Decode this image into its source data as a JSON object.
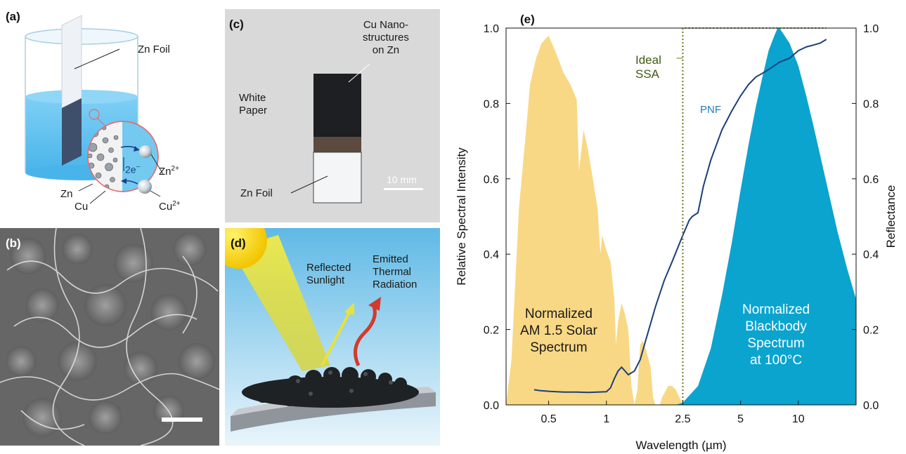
{
  "panel_a": {
    "label": "(a)",
    "zn_foil": "Zn Foil",
    "zn_ion": "Zn",
    "zn_ion_charge": "2+",
    "electrons": "2e",
    "electrons_sup": "−",
    "cu_ion": "Cu",
    "cu_ion_charge": "2+",
    "zn": "Zn",
    "cu": "Cu"
  },
  "panel_b": {
    "label": "(b)"
  },
  "panel_c": {
    "label": "(c)",
    "nano_line1": "Cu Nano-",
    "nano_line2": "structures",
    "nano_line3": "on Zn",
    "paper_line1": "White",
    "paper_line2": "Paper",
    "zn_foil": "Zn Foil",
    "scale": "10 mm"
  },
  "panel_d": {
    "label": "(d)",
    "reflected_line1": "Reflected",
    "reflected_line2": "Sunlight",
    "emitted_line1": "Emitted",
    "emitted_line2": "Thermal",
    "emitted_line3": "Radiation"
  },
  "panel_e": {
    "label": "(e)",
    "ideal_line1": "Ideal",
    "ideal_line2": "SSA",
    "pnf": "PNF",
    "solar_line1": "Normalized",
    "solar_line2": "AM 1.5 Solar",
    "solar_line3": "Spectrum",
    "bb_line1": "Normalized",
    "bb_line2": "Blackbody",
    "bb_line3": "Spectrum",
    "bb_line4": "at 100°C"
  },
  "colors": {
    "solar": "#f8d884",
    "blackbody": "#0aa4cf",
    "pnf": "#1b3f7a",
    "ideal": "#6b7a1f",
    "water": "#62c3f2"
  },
  "chart_data": {
    "type": "area",
    "xlabel": "Wavelength (µm)",
    "ylabel": "Relative Spectral Intensity",
    "y2label": "Reflectance",
    "x_scale": "log",
    "xlim": [
      0.3,
      20
    ],
    "ylim": [
      0,
      1.0
    ],
    "x_ticks": [
      0.5,
      1,
      2.5,
      5,
      10
    ],
    "x_tick_labels": [
      "0.5",
      "1",
      "2.5",
      "5",
      "10"
    ],
    "y_ticks": [
      0.0,
      0.2,
      0.4,
      0.6,
      0.8,
      1.0
    ],
    "y_tick_labels": [
      "0.0",
      "0.2",
      "0.4",
      "0.6",
      "0.8",
      "1.0"
    ],
    "y2_tick_labels": [
      "0.0",
      "0.2",
      "0.4",
      "0.6",
      "0.8",
      "1.0"
    ],
    "series": [
      {
        "key": "solar",
        "kind": "area",
        "x": [
          0.3,
          0.32,
          0.35,
          0.38,
          0.4,
          0.43,
          0.46,
          0.5,
          0.55,
          0.6,
          0.65,
          0.7,
          0.72,
          0.76,
          0.8,
          0.85,
          0.9,
          0.93,
          0.95,
          1.0,
          1.05,
          1.1,
          1.12,
          1.15,
          1.2,
          1.25,
          1.3,
          1.35,
          1.4,
          1.45,
          1.5,
          1.55,
          1.6,
          1.7,
          1.75,
          1.8,
          1.9,
          1.95,
          2.0,
          2.1,
          2.2,
          2.3,
          2.4,
          2.5
        ],
        "values": [
          0.0,
          0.12,
          0.52,
          0.72,
          0.85,
          0.92,
          0.96,
          0.98,
          0.93,
          0.88,
          0.85,
          0.81,
          0.62,
          0.73,
          0.68,
          0.6,
          0.52,
          0.4,
          0.45,
          0.41,
          0.38,
          0.28,
          0.16,
          0.22,
          0.27,
          0.24,
          0.2,
          0.05,
          0.0,
          0.04,
          0.16,
          0.17,
          0.15,
          0.1,
          0.02,
          0.0,
          0.0,
          0.02,
          0.03,
          0.05,
          0.05,
          0.04,
          0.02,
          0.0
        ]
      },
      {
        "key": "blackbody",
        "kind": "area",
        "x": [
          2.3,
          2.5,
          3,
          3.5,
          4,
          4.5,
          5,
          5.5,
          6,
          6.5,
          7,
          7.5,
          7.8,
          8,
          9,
          10,
          11,
          12,
          14,
          16,
          18,
          20
        ],
        "values": [
          0.0,
          0.006,
          0.05,
          0.15,
          0.29,
          0.43,
          0.57,
          0.69,
          0.79,
          0.87,
          0.94,
          0.98,
          1.0,
          0.999,
          0.96,
          0.9,
          0.82,
          0.74,
          0.59,
          0.46,
          0.36,
          0.28
        ]
      },
      {
        "key": "pnf",
        "kind": "line",
        "x": [
          0.42,
          0.45,
          0.5,
          0.55,
          0.6,
          0.65,
          0.7,
          0.8,
          0.9,
          1.0,
          1.05,
          1.1,
          1.15,
          1.2,
          1.25,
          1.3,
          1.4,
          1.5,
          1.6,
          1.8,
          2.0,
          2.2,
          2.5,
          2.7,
          2.8,
          3.0,
          3.2,
          3.5,
          4.0,
          4.5,
          5.0,
          5.5,
          6.0,
          6.5,
          7.0,
          8.0,
          9.0,
          10.0,
          11.0,
          12.0,
          13.0,
          14.0
        ],
        "values": [
          0.04,
          0.038,
          0.036,
          0.035,
          0.034,
          0.034,
          0.034,
          0.033,
          0.034,
          0.035,
          0.045,
          0.07,
          0.09,
          0.1,
          0.09,
          0.08,
          0.09,
          0.12,
          0.17,
          0.26,
          0.33,
          0.38,
          0.45,
          0.49,
          0.5,
          0.51,
          0.58,
          0.65,
          0.73,
          0.78,
          0.82,
          0.85,
          0.87,
          0.88,
          0.89,
          0.91,
          0.92,
          0.94,
          0.95,
          0.955,
          0.96,
          0.97
        ]
      },
      {
        "key": "ideal",
        "kind": "step",
        "x": [
          2.5,
          2.5,
          14
        ],
        "values": [
          0,
          1.0,
          1.0
        ]
      }
    ]
  }
}
